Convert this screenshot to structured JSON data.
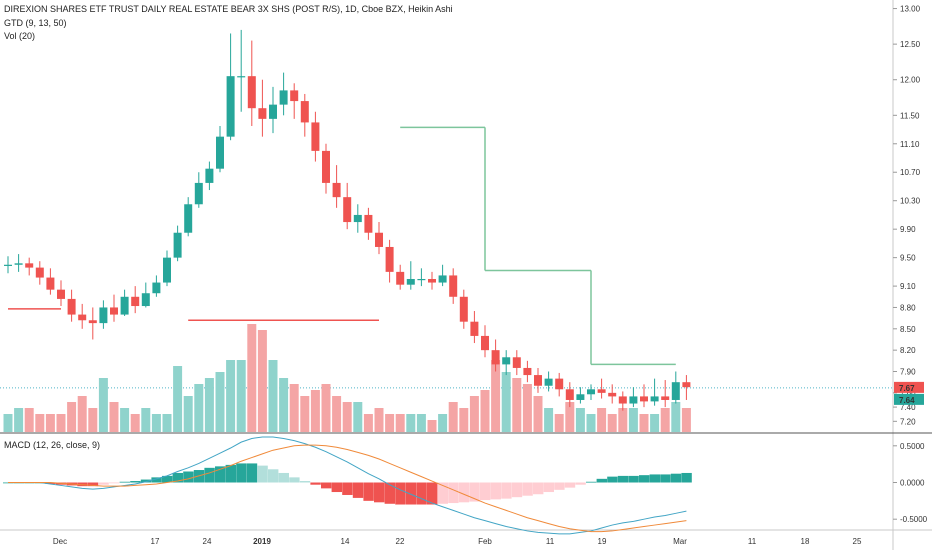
{
  "header": {
    "title": "DIREXION SHARES ETF TRUST DAILY REAL ESTATE BEAR 3X SHS (POST R/S), 1D, Cboe BZX, Heikin Ashi",
    "indicator1": "GTD (9, 13, 50)",
    "indicator2": "Vol (20)",
    "macd_label": "MACD (12, 26, close, 9)"
  },
  "colors": {
    "up": "#26a69a",
    "down": "#ef5350",
    "up_vol": "#8fd3cc",
    "down_vol": "#f4a5a5",
    "gtd": "#7dc59c",
    "gtd_red": "#ef5350",
    "macd": "#42a5c5",
    "signal": "#f08a3a"
  },
  "price_axis": {
    "ticks": [
      "13.00",
      "12.50",
      "12.00",
      "11.50",
      "11.10",
      "10.70",
      "10.30",
      "9.90",
      "9.50",
      "9.10",
      "8.80",
      "8.50",
      "8.20",
      "7.90",
      "7.60",
      "7.40",
      "7.20"
    ]
  },
  "price_tags": {
    "tag1": "7.67",
    "tag2": "7.64"
  },
  "macd_axis": {
    "ticks": [
      "0.5000",
      "0.0000",
      "-0.5000"
    ]
  },
  "time_axis": {
    "labels": [
      "Dec",
      "17",
      "24",
      "2019",
      "14",
      "22",
      "Feb",
      "11",
      "19",
      "Mar",
      "11",
      "18",
      "25"
    ]
  },
  "chart_data": {
    "type": "candlestick",
    "title": "DIREXION SHARES ETF TRUST DAILY REAL ESTATE BEAR 3X SHS (POST R/S), 1D, Cboe BZX, Heikin Ashi",
    "candles": [
      {
        "o": 9.4,
        "c": 9.4,
        "h": 9.52,
        "l": 9.28
      },
      {
        "o": 9.4,
        "c": 9.42,
        "h": 9.55,
        "l": 9.3
      },
      {
        "o": 9.42,
        "c": 9.36,
        "h": 9.5,
        "l": 9.25
      },
      {
        "o": 9.36,
        "c": 9.22,
        "h": 9.45,
        "l": 9.12
      },
      {
        "o": 9.22,
        "c": 9.05,
        "h": 9.35,
        "l": 8.98
      },
      {
        "o": 9.05,
        "c": 8.92,
        "h": 9.18,
        "l": 8.82
      },
      {
        "o": 8.92,
        "c": 8.7,
        "h": 9.05,
        "l": 8.6
      },
      {
        "o": 8.7,
        "c": 8.62,
        "h": 8.85,
        "l": 8.5
      },
      {
        "o": 8.62,
        "c": 8.58,
        "h": 8.8,
        "l": 8.35
      },
      {
        "o": 8.58,
        "c": 8.8,
        "h": 8.9,
        "l": 8.5
      },
      {
        "o": 8.8,
        "c": 8.7,
        "h": 8.98,
        "l": 8.6
      },
      {
        "o": 8.7,
        "c": 8.95,
        "h": 9.05,
        "l": 8.68
      },
      {
        "o": 8.95,
        "c": 8.82,
        "h": 9.1,
        "l": 8.72
      },
      {
        "o": 8.82,
        "c": 9.0,
        "h": 9.15,
        "l": 8.8
      },
      {
        "o": 9.0,
        "c": 9.15,
        "h": 9.25,
        "l": 8.95
      },
      {
        "o": 9.15,
        "c": 9.5,
        "h": 9.6,
        "l": 9.1
      },
      {
        "o": 9.5,
        "c": 9.85,
        "h": 9.95,
        "l": 9.45
      },
      {
        "o": 9.85,
        "c": 10.25,
        "h": 10.35,
        "l": 9.8
      },
      {
        "o": 10.25,
        "c": 10.55,
        "h": 10.7,
        "l": 10.2
      },
      {
        "o": 10.55,
        "c": 10.75,
        "h": 10.85,
        "l": 10.45
      },
      {
        "o": 10.75,
        "c": 11.2,
        "h": 11.35,
        "l": 10.7
      },
      {
        "o": 11.2,
        "c": 12.05,
        "h": 12.65,
        "l": 11.15
      },
      {
        "o": 12.05,
        "c": 12.05,
        "h": 12.7,
        "l": 11.55
      },
      {
        "o": 12.05,
        "c": 11.6,
        "h": 12.55,
        "l": 11.35
      },
      {
        "o": 11.6,
        "c": 11.45,
        "h": 12.0,
        "l": 11.2
      },
      {
        "o": 11.45,
        "c": 11.65,
        "h": 11.9,
        "l": 11.25
      },
      {
        "o": 11.65,
        "c": 11.85,
        "h": 12.1,
        "l": 11.5
      },
      {
        "o": 11.85,
        "c": 11.7,
        "h": 11.95,
        "l": 11.45
      },
      {
        "o": 11.7,
        "c": 11.4,
        "h": 11.8,
        "l": 11.2
      },
      {
        "o": 11.4,
        "c": 11.0,
        "h": 11.55,
        "l": 10.85
      },
      {
        "o": 11.0,
        "c": 10.55,
        "h": 11.1,
        "l": 10.4
      },
      {
        "o": 10.55,
        "c": 10.35,
        "h": 10.8,
        "l": 10.2
      },
      {
        "o": 10.35,
        "c": 10.0,
        "h": 10.55,
        "l": 9.9
      },
      {
        "o": 10.0,
        "c": 10.1,
        "h": 10.25,
        "l": 9.85
      },
      {
        "o": 10.1,
        "c": 9.85,
        "h": 10.2,
        "l": 9.75
      },
      {
        "o": 9.85,
        "c": 9.65,
        "h": 10.0,
        "l": 9.55
      },
      {
        "o": 9.65,
        "c": 9.3,
        "h": 9.75,
        "l": 9.15
      },
      {
        "o": 9.3,
        "c": 9.12,
        "h": 9.4,
        "l": 9.05
      },
      {
        "o": 9.12,
        "c": 9.2,
        "h": 9.45,
        "l": 9.05
      },
      {
        "o": 9.2,
        "c": 9.2,
        "h": 9.35,
        "l": 9.1
      },
      {
        "o": 9.2,
        "c": 9.15,
        "h": 9.3,
        "l": 9.05
      },
      {
        "o": 9.15,
        "c": 9.25,
        "h": 9.4,
        "l": 9.1
      },
      {
        "o": 9.25,
        "c": 8.95,
        "h": 9.35,
        "l": 8.85
      },
      {
        "o": 8.95,
        "c": 8.6,
        "h": 9.05,
        "l": 8.5
      },
      {
        "o": 8.6,
        "c": 8.4,
        "h": 8.75,
        "l": 8.3
      },
      {
        "o": 8.4,
        "c": 8.2,
        "h": 8.55,
        "l": 8.1
      },
      {
        "o": 8.2,
        "c": 8.0,
        "h": 8.35,
        "l": 7.9
      },
      {
        "o": 8.0,
        "c": 8.1,
        "h": 8.2,
        "l": 7.85
      },
      {
        "o": 8.1,
        "c": 7.95,
        "h": 8.2,
        "l": 7.85
      },
      {
        "o": 7.95,
        "c": 7.85,
        "h": 8.05,
        "l": 7.75
      },
      {
        "o": 7.85,
        "c": 7.7,
        "h": 7.95,
        "l": 7.6
      },
      {
        "o": 7.7,
        "c": 7.8,
        "h": 7.9,
        "l": 7.62
      },
      {
        "o": 7.8,
        "c": 7.65,
        "h": 7.88,
        "l": 7.55
      },
      {
        "o": 7.65,
        "c": 7.5,
        "h": 7.75,
        "l": 7.4
      },
      {
        "o": 7.5,
        "c": 7.58,
        "h": 7.68,
        "l": 7.45
      },
      {
        "o": 7.58,
        "c": 7.65,
        "h": 7.72,
        "l": 7.5
      },
      {
        "o": 7.65,
        "c": 7.6,
        "h": 7.8,
        "l": 7.52
      },
      {
        "o": 7.6,
        "c": 7.55,
        "h": 7.72,
        "l": 7.45
      },
      {
        "o": 7.55,
        "c": 7.45,
        "h": 7.62,
        "l": 7.35
      },
      {
        "o": 7.45,
        "c": 7.55,
        "h": 7.68,
        "l": 7.4
      },
      {
        "o": 7.55,
        "c": 7.48,
        "h": 7.72,
        "l": 7.4
      },
      {
        "o": 7.48,
        "c": 7.55,
        "h": 7.8,
        "l": 7.42
      },
      {
        "o": 7.55,
        "c": 7.5,
        "h": 7.78,
        "l": 7.4
      },
      {
        "o": 7.5,
        "c": 7.75,
        "h": 7.9,
        "l": 7.45
      },
      {
        "o": 7.75,
        "c": 7.68,
        "h": 7.85,
        "l": 7.5
      }
    ],
    "volume": [
      3,
      4,
      4,
      3,
      3,
      3,
      5,
      6,
      4,
      9,
      5,
      4,
      3,
      4,
      3,
      3,
      11,
      6,
      8,
      9,
      10,
      12,
      12,
      18,
      17,
      12,
      9,
      8,
      6,
      7,
      8,
      6,
      5,
      5,
      3,
      4,
      3,
      3,
      3,
      3,
      2,
      3,
      5,
      4,
      6,
      7,
      12,
      10,
      9,
      8,
      6,
      4,
      3,
      5,
      4,
      3,
      4,
      3,
      4,
      4,
      3,
      3,
      4,
      5,
      4
    ],
    "gtd_line": [
      {
        "from_bar": 0,
        "to_bar": 5,
        "value": 8.78,
        "color": "red"
      },
      {
        "from_bar": 17,
        "to_bar": 35,
        "value": 8.62,
        "color": "red"
      },
      {
        "from_bar": 37,
        "to_bar": 45,
        "value": 11.33,
        "color": "green"
      },
      {
        "from_bar": 45,
        "to_bar": 55,
        "value": 9.32,
        "color": "green"
      },
      {
        "from_bar": 55,
        "to_bar": 63,
        "value": 8.0,
        "color": "green"
      }
    ],
    "macd": [
      0,
      0,
      0,
      0,
      -0.02,
      -0.04,
      -0.06,
      -0.08,
      -0.09,
      -0.08,
      -0.06,
      -0.04,
      -0.02,
      0.01,
      0.05,
      0.09,
      0.15,
      0.2,
      0.26,
      0.33,
      0.4,
      0.47,
      0.55,
      0.6,
      0.62,
      0.62,
      0.6,
      0.57,
      0.53,
      0.48,
      0.42,
      0.35,
      0.28,
      0.2,
      0.12,
      0.05,
      -0.03,
      -0.1,
      -0.16,
      -0.22,
      -0.28,
      -0.33,
      -0.38,
      -0.43,
      -0.48,
      -0.52,
      -0.56,
      -0.6,
      -0.63,
      -0.66,
      -0.68,
      -0.69,
      -0.7,
      -0.7,
      -0.68,
      -0.66,
      -0.62,
      -0.58,
      -0.55,
      -0.53,
      -0.5,
      -0.47,
      -0.45,
      -0.42,
      -0.39
    ],
    "signal": [
      0,
      0,
      0,
      0,
      0,
      -0.01,
      -0.02,
      -0.03,
      -0.04,
      -0.05,
      -0.05,
      -0.05,
      -0.04,
      -0.03,
      -0.02,
      0.0,
      0.02,
      0.05,
      0.09,
      0.13,
      0.18,
      0.23,
      0.29,
      0.34,
      0.39,
      0.44,
      0.47,
      0.5,
      0.51,
      0.51,
      0.5,
      0.48,
      0.45,
      0.41,
      0.37,
      0.32,
      0.26,
      0.2,
      0.14,
      0.08,
      0.02,
      -0.04,
      -0.1,
      -0.16,
      -0.22,
      -0.28,
      -0.33,
      -0.38,
      -0.43,
      -0.48,
      -0.52,
      -0.56,
      -0.6,
      -0.63,
      -0.65,
      -0.67,
      -0.67,
      -0.66,
      -0.64,
      -0.62,
      -0.6,
      -0.58,
      -0.56,
      -0.54,
      -0.52
    ],
    "histogram": [
      0,
      0,
      0,
      0,
      -0.02,
      -0.03,
      -0.04,
      -0.05,
      -0.05,
      -0.03,
      -0.01,
      0.01,
      0.02,
      0.04,
      0.07,
      0.09,
      0.13,
      0.15,
      0.17,
      0.2,
      0.22,
      0.24,
      0.26,
      0.26,
      0.23,
      0.18,
      0.13,
      0.07,
      0.02,
      -0.03,
      -0.08,
      -0.13,
      -0.17,
      -0.21,
      -0.25,
      -0.27,
      -0.29,
      -0.3,
      -0.3,
      -0.3,
      -0.3,
      -0.29,
      -0.28,
      -0.27,
      -0.26,
      -0.24,
      -0.23,
      -0.22,
      -0.2,
      -0.18,
      -0.16,
      -0.13,
      -0.1,
      -0.07,
      -0.03,
      0.01,
      0.05,
      0.08,
      0.09,
      0.09,
      0.1,
      0.11,
      0.11,
      0.12,
      0.13
    ],
    "price_range": [
      7.05,
      13.05
    ],
    "macd_range": [
      -0.62,
      0.62
    ]
  }
}
